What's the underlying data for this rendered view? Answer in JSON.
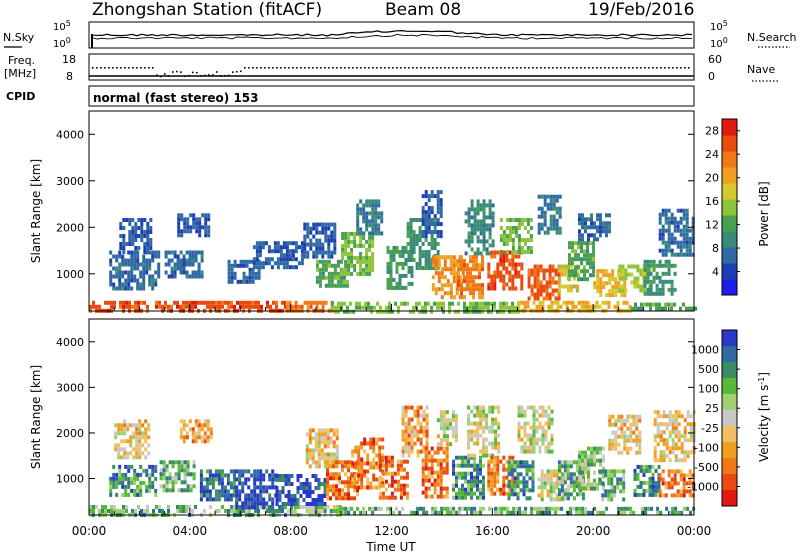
{
  "header": {
    "station_title": "Zhongshan Station (fitACF)",
    "beam": "Beam 08",
    "date": "19/Feb/2016"
  },
  "top_panels": {
    "nsky_label": "N.Sky",
    "nsearch_label": "N.Search",
    "freq_label_line1": "Freq.",
    "freq_label_line2": "[MHz]",
    "nave_label": "Nave",
    "cpid_label": "CPID",
    "cpid_text": "normal (fast stereo) 153",
    "noise_ticks": [
      "10^5",
      "10^0"
    ],
    "noise_ticks_right": [
      "10^5",
      "10^0"
    ],
    "freq_ticks": [
      "18",
      "8"
    ],
    "nave_ticks": [
      "60",
      "0"
    ]
  },
  "chart_data": [
    {
      "type": "heatmap",
      "name": "power",
      "ylabel": "Slant Range [km]",
      "xlabel": "",
      "yticks": [
        "4000",
        "3000",
        "2000",
        "1000"
      ],
      "ylim": [
        200,
        4500
      ],
      "xlim": [
        0,
        24
      ],
      "colorbar": {
        "label": "Power [dB]",
        "ticks": [
          "28",
          "24",
          "20",
          "16",
          "12",
          "8",
          "4"
        ],
        "range": [
          0,
          30
        ],
        "colors": [
          "#1e1ee6",
          "#1e3fb4",
          "#2f6aa4",
          "#3a8a78",
          "#48a050",
          "#8cc43c",
          "#d8c830",
          "#f0a020",
          "#f07818",
          "#e84a10",
          "#e01a10"
        ]
      },
      "blobs": [
        {
          "t0": 0.0,
          "t1": 7.8,
          "r0": 220,
          "r1": 420,
          "v": 27
        },
        {
          "t0": 7.8,
          "t1": 9.6,
          "r0": 220,
          "r1": 420,
          "v": 24
        },
        {
          "t0": 9.6,
          "t1": 17.0,
          "r0": 220,
          "r1": 400,
          "v": 14
        },
        {
          "t0": 17.0,
          "t1": 21.5,
          "r0": 220,
          "r1": 420,
          "v": 20
        },
        {
          "t0": 21.5,
          "t1": 24.0,
          "r0": 220,
          "r1": 380,
          "v": 12
        },
        {
          "t0": 0.8,
          "t1": 2.8,
          "r0": 700,
          "r1": 1500,
          "v": 6
        },
        {
          "t0": 1.2,
          "t1": 2.4,
          "r0": 1500,
          "r1": 2200,
          "v": 5
        },
        {
          "t0": 3.0,
          "t1": 4.5,
          "r0": 900,
          "r1": 1500,
          "v": 6
        },
        {
          "t0": 3.5,
          "t1": 4.8,
          "r0": 1800,
          "r1": 2300,
          "v": 5
        },
        {
          "t0": 5.5,
          "t1": 6.8,
          "r0": 800,
          "r1": 1300,
          "v": 6
        },
        {
          "t0": 6.5,
          "t1": 8.5,
          "r0": 1100,
          "r1": 1700,
          "v": 5
        },
        {
          "t0": 8.5,
          "t1": 9.8,
          "r0": 1400,
          "r1": 2100,
          "v": 5
        },
        {
          "t0": 9.0,
          "t1": 10.2,
          "r0": 700,
          "r1": 1300,
          "v": 12
        },
        {
          "t0": 10.0,
          "t1": 11.2,
          "r0": 1000,
          "r1": 1900,
          "v": 14
        },
        {
          "t0": 10.6,
          "t1": 11.6,
          "r0": 1900,
          "r1": 2600,
          "v": 8
        },
        {
          "t0": 11.8,
          "t1": 12.8,
          "r0": 700,
          "r1": 1600,
          "v": 11
        },
        {
          "t0": 12.6,
          "t1": 13.8,
          "r0": 1100,
          "r1": 2200,
          "v": 10
        },
        {
          "t0": 13.2,
          "t1": 14.0,
          "r0": 1800,
          "r1": 2800,
          "v": 5
        },
        {
          "t0": 13.6,
          "t1": 14.8,
          "r0": 500,
          "r1": 1400,
          "v": 22
        },
        {
          "t0": 14.6,
          "t1": 15.6,
          "r0": 500,
          "r1": 1400,
          "v": 24
        },
        {
          "t0": 14.9,
          "t1": 16.0,
          "r0": 1400,
          "r1": 2600,
          "v": 9
        },
        {
          "t0": 15.8,
          "t1": 17.2,
          "r0": 700,
          "r1": 1500,
          "v": 27
        },
        {
          "t0": 16.3,
          "t1": 17.6,
          "r0": 1500,
          "r1": 2200,
          "v": 14
        },
        {
          "t0": 17.4,
          "t1": 18.6,
          "r0": 500,
          "r1": 1200,
          "v": 26
        },
        {
          "t0": 17.8,
          "t1": 18.7,
          "r0": 1900,
          "r1": 2700,
          "v": 7
        },
        {
          "t0": 18.6,
          "t1": 19.4,
          "r0": 600,
          "r1": 1200,
          "v": 18
        },
        {
          "t0": 19.0,
          "t1": 20.0,
          "r0": 900,
          "r1": 1700,
          "v": 12
        },
        {
          "t0": 19.4,
          "t1": 20.6,
          "r0": 1700,
          "r1": 2300,
          "v": 6
        },
        {
          "t0": 20.0,
          "t1": 21.2,
          "r0": 500,
          "r1": 1100,
          "v": 20
        },
        {
          "t0": 21.0,
          "t1": 22.2,
          "r0": 600,
          "r1": 1200,
          "v": 16
        },
        {
          "t0": 22.0,
          "t1": 23.2,
          "r0": 600,
          "r1": 1300,
          "v": 10
        },
        {
          "t0": 22.6,
          "t1": 24.0,
          "r0": 1400,
          "r1": 2400,
          "v": 6
        }
      ]
    },
    {
      "type": "heatmap",
      "name": "velocity",
      "ylabel": "Slant Range [km]",
      "xlabel": "Time UT",
      "yticks": [
        "4000",
        "3000",
        "2000",
        "1000"
      ],
      "xticks": [
        "00:00",
        "04:00",
        "08:00",
        "12:00",
        "16:00",
        "20:00",
        "00:00"
      ],
      "ylim": [
        200,
        4500
      ],
      "xlim": [
        0,
        24
      ],
      "colorbar": {
        "label": "Velocity [m s^-1]",
        "ticks": [
          "1000",
          "500",
          "100",
          "25",
          "-25",
          "-100",
          "-500",
          "-1000"
        ],
        "colors": [
          "#2838c8",
          "#2f6aa4",
          "#3a8c64",
          "#58b838",
          "#9cd070",
          "#c8c8c8",
          "#f0c060",
          "#f0a020",
          "#f07818",
          "#e84a10",
          "#e01a10"
        ]
      },
      "blobs": [
        {
          "t0": 0.0,
          "t1": 8.0,
          "r0": 220,
          "r1": 420,
          "v": 3
        },
        {
          "t0": 8.0,
          "t1": 10.0,
          "r0": 220,
          "r1": 420,
          "v": 4
        },
        {
          "t0": 10.0,
          "t1": 24.0,
          "r0": 220,
          "r1": 380,
          "v": 3
        },
        {
          "t0": 0.8,
          "t1": 2.6,
          "r0": 600,
          "r1": 1300,
          "v": 2
        },
        {
          "t0": 1.0,
          "t1": 2.4,
          "r0": 1500,
          "r1": 2300,
          "v": 6
        },
        {
          "t0": 2.8,
          "t1": 4.2,
          "r0": 700,
          "r1": 1400,
          "v": 3
        },
        {
          "t0": 3.6,
          "t1": 4.8,
          "r0": 1800,
          "r1": 2300,
          "v": 7
        },
        {
          "t0": 4.4,
          "t1": 5.8,
          "r0": 500,
          "r1": 1200,
          "v": 1
        },
        {
          "t0": 5.8,
          "t1": 7.4,
          "r0": 400,
          "r1": 1200,
          "v": 0
        },
        {
          "t0": 7.4,
          "t1": 9.4,
          "r0": 400,
          "r1": 1100,
          "v": 0
        },
        {
          "t0": 8.6,
          "t1": 9.8,
          "r0": 1300,
          "r1": 2100,
          "v": 6
        },
        {
          "t0": 9.4,
          "t1": 10.6,
          "r0": 600,
          "r1": 1400,
          "v": 8
        },
        {
          "t0": 10.4,
          "t1": 11.6,
          "r0": 800,
          "r1": 1900,
          "v": 8
        },
        {
          "t0": 11.5,
          "t1": 12.6,
          "r0": 600,
          "r1": 1500,
          "v": 8
        },
        {
          "t0": 12.4,
          "t1": 13.4,
          "r0": 1500,
          "r1": 2600,
          "v": 7
        },
        {
          "t0": 13.2,
          "t1": 14.2,
          "r0": 600,
          "r1": 1700,
          "v": 8
        },
        {
          "t0": 13.8,
          "t1": 14.6,
          "r0": 1700,
          "r1": 2500,
          "v": 5
        },
        {
          "t0": 14.4,
          "t1": 15.6,
          "r0": 600,
          "r1": 1500,
          "v": 2
        },
        {
          "t0": 15.0,
          "t1": 16.2,
          "r0": 1500,
          "r1": 2600,
          "v": 5
        },
        {
          "t0": 15.8,
          "t1": 16.8,
          "r0": 700,
          "r1": 1500,
          "v": 8
        },
        {
          "t0": 16.6,
          "t1": 17.6,
          "r0": 600,
          "r1": 1400,
          "v": 2
        },
        {
          "t0": 17.0,
          "t1": 18.4,
          "r0": 1600,
          "r1": 2600,
          "v": 5
        },
        {
          "t0": 17.8,
          "t1": 18.8,
          "r0": 500,
          "r1": 1200,
          "v": 5
        },
        {
          "t0": 18.6,
          "t1": 19.6,
          "r0": 600,
          "r1": 1400,
          "v": 3
        },
        {
          "t0": 19.4,
          "t1": 20.4,
          "r0": 800,
          "r1": 1700,
          "v": 4
        },
        {
          "t0": 20.2,
          "t1": 21.2,
          "r0": 500,
          "r1": 1200,
          "v": 3
        },
        {
          "t0": 20.6,
          "t1": 21.8,
          "r0": 1600,
          "r1": 2400,
          "v": 6
        },
        {
          "t0": 21.6,
          "t1": 22.6,
          "r0": 600,
          "r1": 1300,
          "v": 2
        },
        {
          "t0": 22.4,
          "t1": 24.0,
          "r0": 1400,
          "r1": 2500,
          "v": 6
        },
        {
          "t0": 22.6,
          "t1": 24.0,
          "r0": 600,
          "r1": 1200,
          "v": 8
        }
      ]
    }
  ]
}
